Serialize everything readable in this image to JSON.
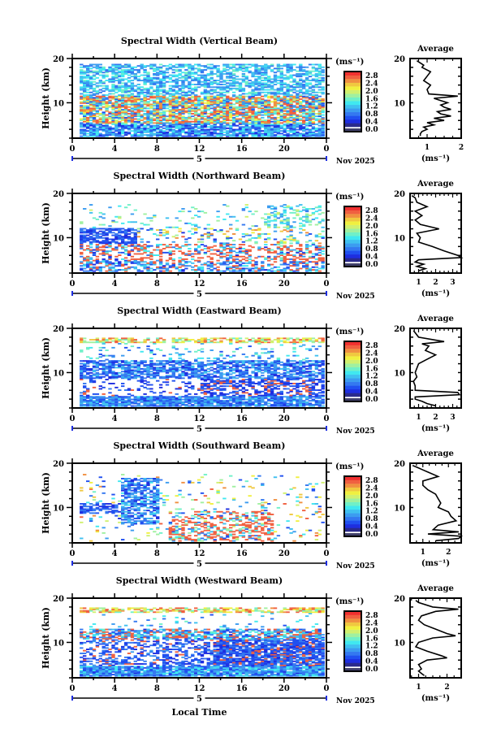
{
  "figure": {
    "xlabel": "Local Time",
    "date_day": "5",
    "date_month_year": "Nov 2025",
    "avg_title": "Average",
    "avg_unit": "(ms⁻¹)",
    "cbar_unit": "(ms⁻¹)"
  },
  "chart_data": [
    {
      "type": "heatmap",
      "title": "Spectral Width (Vertical Beam)",
      "xlabel": "Local Time",
      "ylabel": "Height (km)",
      "x_ticks": [
        "0",
        "4",
        "8",
        "12",
        "16",
        "20",
        "0"
      ],
      "y_ticks": [
        "20",
        "10"
      ],
      "xlim": [
        0,
        24
      ],
      "ylim": [
        2,
        20
      ],
      "colorbar": {
        "unit": "(ms⁻¹)",
        "ticks": [
          "2.8",
          "2.4",
          "2.0",
          "1.6",
          "1.2",
          "0.8",
          "0.4",
          "0.0"
        ],
        "range": [
          0.0,
          3.0
        ]
      },
      "coverage": "dense 2-18.5 km, high widths 5-10 km",
      "average": {
        "title": "Average",
        "xlabel": "(ms⁻¹)",
        "x_ticks": [
          "1",
          "2"
        ],
        "xlim": [
          0.5,
          2.0
        ],
        "height": [
          19.5,
          19,
          18.5,
          18,
          17,
          16,
          15,
          14,
          13,
          12,
          11.5,
          11,
          10.5,
          10,
          9.5,
          9,
          8.5,
          8,
          7.5,
          7,
          6.5,
          6,
          5.5,
          5,
          4.5,
          4,
          3.5,
          3,
          2.5
        ],
        "value": [
          0.7,
          0.8,
          0.9,
          0.85,
          1.1,
          1.0,
          0.9,
          1.1,
          1.0,
          1.05,
          1.9,
          1.2,
          1.4,
          1.6,
          1.4,
          1.5,
          1.7,
          1.3,
          1.4,
          1.7,
          1.2,
          1.5,
          1.0,
          1.2,
          0.9,
          1.0,
          0.85,
          0.8,
          0.8
        ]
      }
    },
    {
      "type": "heatmap",
      "title": "Spectral Width (Northward Beam)",
      "xlabel": "Local Time",
      "ylabel": "Height (km)",
      "x_ticks": [
        "0",
        "4",
        "8",
        "12",
        "16",
        "20",
        "0"
      ],
      "y_ticks": [
        "20",
        "10"
      ],
      "xlim": [
        0,
        24
      ],
      "ylim": [
        2,
        20
      ],
      "colorbar": {
        "unit": "(ms⁻¹)",
        "ticks": [
          "2.8",
          "2.4",
          "2.0",
          "1.6",
          "1.2",
          "0.8",
          "0.4",
          "0.0"
        ],
        "range": [
          0.0,
          3.0
        ]
      },
      "coverage": "sparse, 2-17 km",
      "average": {
        "title": "Average",
        "xlabel": "(ms⁻¹)",
        "x_ticks": [
          "1",
          "2",
          "3"
        ],
        "xlim": [
          0.5,
          3.5
        ],
        "height": [
          19.5,
          19,
          18,
          17,
          16,
          15,
          14,
          13,
          12,
          11,
          10,
          9,
          8,
          7,
          6,
          5.5,
          5,
          4.5,
          4,
          3.5,
          3,
          2.5
        ],
        "value": [
          0.6,
          0.8,
          0.9,
          1.5,
          0.8,
          1.2,
          0.8,
          1.1,
          2.2,
          0.9,
          1.1,
          1.0,
          1.8,
          2.5,
          3.3,
          3.5,
          1.0,
          0.8,
          1.3,
          0.9,
          1.4,
          1.0
        ]
      }
    },
    {
      "type": "heatmap",
      "title": "Spectral Width (Eastward Beam)",
      "xlabel": "Local Time",
      "ylabel": "Height (km)",
      "x_ticks": [
        "0",
        "4",
        "8",
        "12",
        "16",
        "20",
        "0"
      ],
      "y_ticks": [
        "20",
        "10"
      ],
      "xlim": [
        0,
        24
      ],
      "ylim": [
        2,
        20
      ],
      "colorbar": {
        "unit": "(ms⁻¹)",
        "ticks": [
          "2.8",
          "2.4",
          "2.0",
          "1.6",
          "1.2",
          "0.8",
          "0.4",
          "0.0"
        ],
        "range": [
          0.0,
          3.0
        ]
      },
      "coverage": "layers near 2-5 km, 8-12 km, 17 km",
      "average": {
        "title": "Average",
        "xlabel": "(ms⁻¹)",
        "x_ticks": [
          "1",
          "2",
          "3"
        ],
        "xlim": [
          0.5,
          3.5
        ],
        "height": [
          19.5,
          19,
          18,
          17,
          16.5,
          16,
          15,
          14,
          13,
          12,
          11,
          10,
          9,
          8,
          7,
          6,
          5.5,
          5,
          4.5,
          4,
          3.5,
          3,
          2.5
        ],
        "value": [
          0.7,
          0.8,
          1.0,
          2.5,
          1.2,
          1.6,
          1.4,
          2.0,
          1.5,
          1.0,
          0.9,
          0.8,
          0.9,
          0.7,
          0.8,
          0.8,
          3.3,
          3.4,
          0.8,
          0.8,
          1.2,
          1.5,
          2.0
        ]
      }
    },
    {
      "type": "heatmap",
      "title": "Spectral Width (Southward Beam)",
      "xlabel": "Local Time",
      "ylabel": "Height (km)",
      "x_ticks": [
        "0",
        "4",
        "8",
        "12",
        "16",
        "20",
        "0"
      ],
      "y_ticks": [
        "20",
        "10"
      ],
      "xlim": [
        0,
        24
      ],
      "ylim": [
        2,
        20
      ],
      "colorbar": {
        "unit": "(ms⁻¹)",
        "ticks": [
          "2.8",
          "2.4",
          "2.0",
          "1.6",
          "1.2",
          "0.8",
          "0.4",
          "0.0"
        ],
        "range": [
          0.0,
          3.0
        ]
      },
      "coverage": "sparse, 2-17 km",
      "average": {
        "title": "Average",
        "xlabel": "(ms⁻¹)",
        "x_ticks": [
          "1",
          "2"
        ],
        "xlim": [
          0.5,
          2.5
        ],
        "height": [
          19.5,
          19,
          18.5,
          18,
          17,
          16,
          15,
          14,
          13,
          12,
          11,
          10,
          9,
          8,
          7,
          6,
          5,
          4.5,
          4,
          3.5,
          3,
          2.5
        ],
        "value": [
          0.6,
          0.8,
          1.0,
          1.2,
          1.6,
          1.0,
          1.0,
          1.2,
          1.5,
          1.6,
          1.7,
          1.6,
          2.0,
          2.1,
          2.3,
          1.6,
          1.4,
          2.4,
          1.2,
          2.5,
          2.4,
          1.5
        ]
      }
    },
    {
      "type": "heatmap",
      "title": "Spectral Width (Westward Beam)",
      "xlabel": "Local Time",
      "ylabel": "Height (km)",
      "x_ticks": [
        "0",
        "4",
        "8",
        "12",
        "16",
        "20",
        "0"
      ],
      "y_ticks": [
        "20",
        "10"
      ],
      "xlim": [
        0,
        24
      ],
      "ylim": [
        2,
        20
      ],
      "colorbar": {
        "unit": "(ms⁻¹)",
        "ticks": [
          "2.8",
          "2.4",
          "2.0",
          "1.6",
          "1.2",
          "0.8",
          "0.4",
          "0.0"
        ],
        "range": [
          0.0,
          3.0
        ]
      },
      "coverage": "dense 2-12 km, layer near 17 km",
      "average": {
        "title": "Average",
        "xlabel": "(ms⁻¹)",
        "x_ticks": [
          "1",
          "2"
        ],
        "xlim": [
          0.7,
          2.5
        ],
        "height": [
          19.5,
          19,
          18,
          17.5,
          17,
          16,
          15,
          14,
          13,
          12,
          11.5,
          11,
          10,
          9,
          8,
          7,
          6.5,
          6,
          5,
          4,
          3.5,
          3,
          2.5
        ],
        "value": [
          0.9,
          1.0,
          1.5,
          2.4,
          1.6,
          1.1,
          1.0,
          1.2,
          1.6,
          2.0,
          2.3,
          1.5,
          1.0,
          0.9,
          1.3,
          1.8,
          2.0,
          1.3,
          1.0,
          1.1,
          1.0,
          1.1,
          1.2
        ]
      }
    }
  ]
}
